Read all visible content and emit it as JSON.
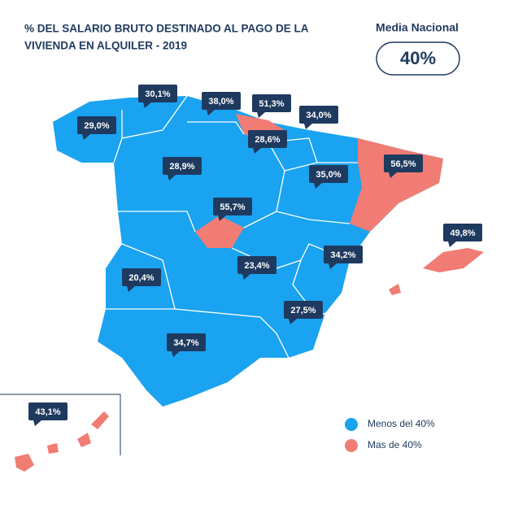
{
  "header": {
    "title_lines": [
      "% DEL SALARIO BRUTO DESTINADO AL PAGO DE LA",
      "VIVIENDA EN ALQUILER - 2019"
    ]
  },
  "national": {
    "label": "Media Nacional",
    "value": "40%"
  },
  "regions": [
    "30,1%",
    "38,0%",
    "51,3%",
    "34,0%",
    "29,0%",
    "28,6%",
    "28,9%",
    "35,0%",
    "56,5%",
    "55,7%",
    "49,8%",
    "34,2%",
    "20,4%",
    "23,4%",
    "27,5%",
    "34,7%",
    "43,1%"
  ],
  "legend": [
    "Menos del 40%",
    "Mas de 40%"
  ]
}
